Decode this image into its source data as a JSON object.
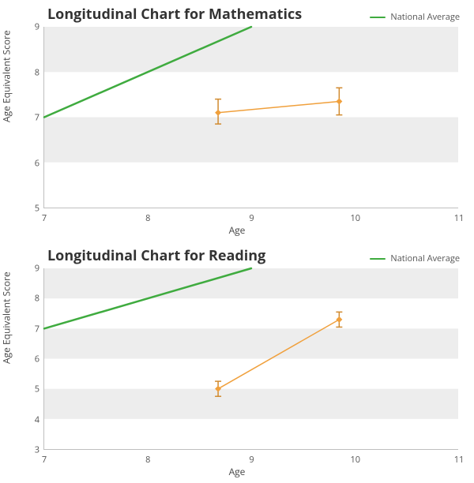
{
  "charts": [
    {
      "title": "Longitudinal Chart for Mathematics",
      "xlabel": "Age",
      "ylabel": "Age Equivalent Score",
      "xlim": [
        7,
        11
      ],
      "ylim": [
        5,
        9
      ],
      "xtick_step": 1,
      "ytick_step": 1,
      "background_color": "#ffffff",
      "band_color": "#ededed",
      "axis_color": "#bfbfbf",
      "text_color": "#444444",
      "title_fontsize": 18,
      "label_fontsize": 12,
      "tick_fontsize": 11,
      "legend": {
        "label": "National Average",
        "color": "#3fab3f"
      },
      "national_line": {
        "color": "#3fab3f",
        "width": 2.5,
        "points": [
          [
            7,
            7
          ],
          [
            9,
            9
          ]
        ]
      },
      "student_series": {
        "line_color": "#f0a03c",
        "line_width": 1.5,
        "marker_color": "#f0a03c",
        "marker_size": 8,
        "error_color": "#d18a2e",
        "error_width": 1.5,
        "points": [
          {
            "x": 8.68,
            "y": 7.1,
            "err_low": 6.85,
            "err_high": 7.4
          },
          {
            "x": 9.85,
            "y": 7.35,
            "err_low": 7.05,
            "err_high": 7.65
          }
        ]
      }
    },
    {
      "title": "Longitudinal Chart for Reading",
      "xlabel": "Age",
      "ylabel": "Age Equivalent Score",
      "xlim": [
        7,
        11
      ],
      "ylim": [
        3,
        9
      ],
      "xtick_step": 1,
      "ytick_step": 1,
      "background_color": "#ffffff",
      "band_color": "#ededed",
      "axis_color": "#bfbfbf",
      "text_color": "#444444",
      "title_fontsize": 18,
      "label_fontsize": 12,
      "tick_fontsize": 11,
      "legend": {
        "label": "National Average",
        "color": "#3fab3f"
      },
      "national_line": {
        "color": "#3fab3f",
        "width": 2.5,
        "points": [
          [
            7,
            7
          ],
          [
            9,
            9
          ]
        ]
      },
      "student_series": {
        "line_color": "#f0a03c",
        "line_width": 1.5,
        "marker_color": "#f0a03c",
        "marker_size": 8,
        "error_color": "#d18a2e",
        "error_width": 1.5,
        "points": [
          {
            "x": 8.68,
            "y": 5.0,
            "err_low": 4.75,
            "err_high": 5.25
          },
          {
            "x": 9.85,
            "y": 7.3,
            "err_low": 7.05,
            "err_high": 7.55
          }
        ]
      }
    }
  ]
}
